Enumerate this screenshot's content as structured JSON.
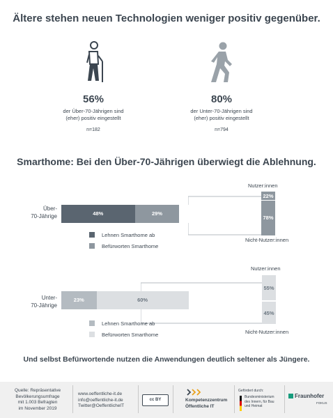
{
  "title": "Ältere stehen neuen Technologien weniger positiv gegenüber.",
  "stat_left": {
    "value": "56%",
    "line1": "der Über-70-Jährigen sind",
    "line2": "(eher) positiv eingestellt",
    "n": "n=182"
  },
  "stat_right": {
    "value": "80%",
    "line1": "der Unter-70-Jährigen sind",
    "line2": "(eher) positiv eingestellt",
    "n": "n=794"
  },
  "subtitle": "Smarthome: Bei den Über-70-Jährigen überwiegt die Ablehnung.",
  "colors": {
    "dark": "#5a6570",
    "mid": "#8e979f",
    "light": "#b4bbc1",
    "pale": "#dcdfe2",
    "text": "#3c4650"
  },
  "chart_data": [
    {
      "type": "bar",
      "group_label_1": "Über-",
      "group_label_2": "70-Jährige",
      "series": [
        {
          "name": "Lehnen Smarthome ab",
          "values": [
            48
          ],
          "label": "48%"
        },
        {
          "name": "Befürworten Smarthome",
          "values": [
            29
          ],
          "label": "29%"
        }
      ],
      "breakdown": {
        "top_label": "Nutzer:innen",
        "top_value": 22,
        "top_text": "22%",
        "bottom_label": "Nicht-Nutzer:innen",
        "bottom_value": 78,
        "bottom_text": "78%"
      },
      "legend": [
        "Lehnen Smarthome ab",
        "Befürworten Smarthome"
      ]
    },
    {
      "type": "bar",
      "group_label_1": "Unter-",
      "group_label_2": "70-Jährige",
      "series": [
        {
          "name": "Lehnen Smarthome ab",
          "values": [
            23
          ],
          "label": "23%"
        },
        {
          "name": "Befürworten Smarthome",
          "values": [
            60
          ],
          "label": "60%"
        }
      ],
      "breakdown": {
        "top_label": "Nutzer:innen",
        "top_value": 55,
        "top_text": "55%",
        "bottom_label": "Nicht-Nutzer:innen",
        "bottom_value": 45,
        "bottom_text": "45%"
      },
      "legend": [
        "Lehnen Smarthome ab",
        "Befürworten Smarthome"
      ]
    }
  ],
  "closing": "Und selbst Befürwortende nutzen die Anwendungen deutlich seltener als Jüngere.",
  "footer": {
    "source1": "Quelle: Repräsentative",
    "source2": "Bevölkerungsumfrage",
    "source3": "mit 1.003 Befragten",
    "source4": "im November 2019",
    "web": "www.oeffentliche-it.de",
    "mail": "info@oeffentliche-it.de",
    "twitter": "Twitter@OeffentlicheIT",
    "cc": "cc",
    "cc_by": "BY",
    "kompetenz1": "Kompetenzzentrum",
    "kompetenz2": "Öffentliche IT",
    "gefoerdert": "Gefördert durch:",
    "bmi1": "Bundesministerium",
    "bmi2": "des Innern, für Bau",
    "bmi3": "und Heimat",
    "fraunhofer": "Fraunhofer",
    "fokus": "FOKUS"
  }
}
